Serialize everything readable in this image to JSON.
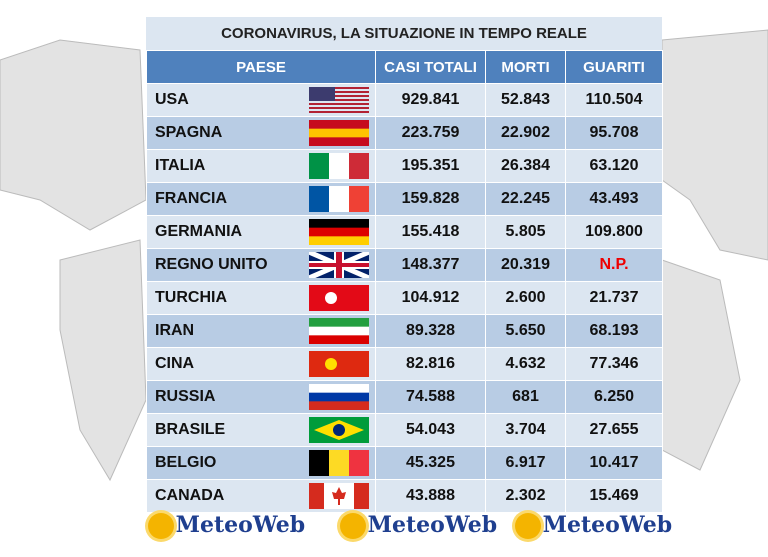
{
  "title": "CORONAVIRUS, LA SITUAZIONE IN TEMPO REALE",
  "table": {
    "header": [
      "PAESE",
      "CASI TOTALI",
      "MORTI",
      "GUARITI"
    ],
    "rows": [
      [
        "USA",
        "929.841",
        "52.843",
        "110.504"
      ],
      [
        "SPAGNA",
        "223.759",
        "22.902",
        "95.708"
      ],
      [
        "ITALIA",
        "195.351",
        "26.384",
        "63.120"
      ],
      [
        "FRANCIA",
        "159.828",
        "22.245",
        "43.493"
      ],
      [
        "GERMANIA",
        "155.418",
        "5.805",
        "109.800"
      ],
      [
        "REGNO UNITO",
        "148.377",
        "20.319",
        "N.P."
      ],
      [
        "TURCHIA",
        "104.912",
        "2.600",
        "21.737"
      ],
      [
        "IRAN",
        "89.328",
        "5.650",
        "68.193"
      ],
      [
        "CINA",
        "82.816",
        "4.632",
        "77.346"
      ],
      [
        "RUSSIA",
        "74.588",
        "681",
        "6.250"
      ],
      [
        "BRASILE",
        "54.043",
        "3.704",
        "27.655"
      ],
      [
        "BELGIO",
        "45.325",
        "6.917",
        "10.417"
      ],
      [
        "CANADA",
        "43.888",
        "2.302",
        "15.469"
      ]
    ]
  },
  "footer": {
    "logos": [
      "MeteoWeb",
      "MeteoWeb",
      "MeteoWeb"
    ]
  }
}
